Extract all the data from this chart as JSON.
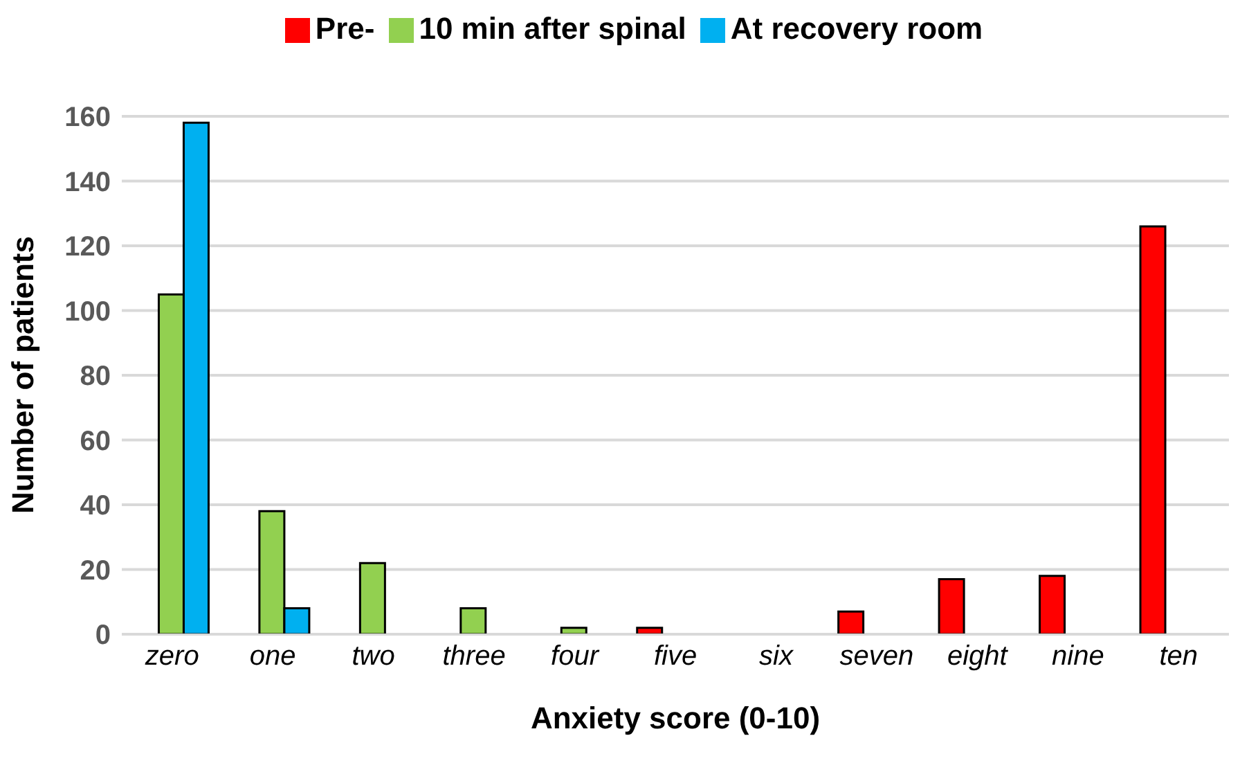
{
  "chart_data": {
    "type": "bar",
    "xlabel": "Anxiety score (0-10)",
    "ylabel": "Number of patients",
    "categories": [
      "zero",
      "one",
      "two",
      "three",
      "four",
      "five",
      "six",
      "seven",
      "eight",
      "nine",
      "ten"
    ],
    "series": [
      {
        "name": "Pre-",
        "color": "#ff0000",
        "values": [
          0,
          0,
          0,
          0,
          0,
          2,
          0,
          7,
          17,
          18,
          126
        ]
      },
      {
        "name": "10 min after spinal",
        "color": "#92d050",
        "values": [
          105,
          38,
          22,
          8,
          2,
          0,
          0,
          0,
          0,
          0,
          0
        ]
      },
      {
        "name": "At recovery room",
        "color": "#00b0f0",
        "values": [
          158,
          8,
          0,
          0,
          0,
          0,
          0,
          0,
          0,
          0,
          0
        ]
      }
    ],
    "ylim": [
      0,
      160
    ],
    "yticks": [
      0,
      20,
      40,
      60,
      80,
      100,
      120,
      140,
      160
    ],
    "grid": "y",
    "legend": "top"
  }
}
